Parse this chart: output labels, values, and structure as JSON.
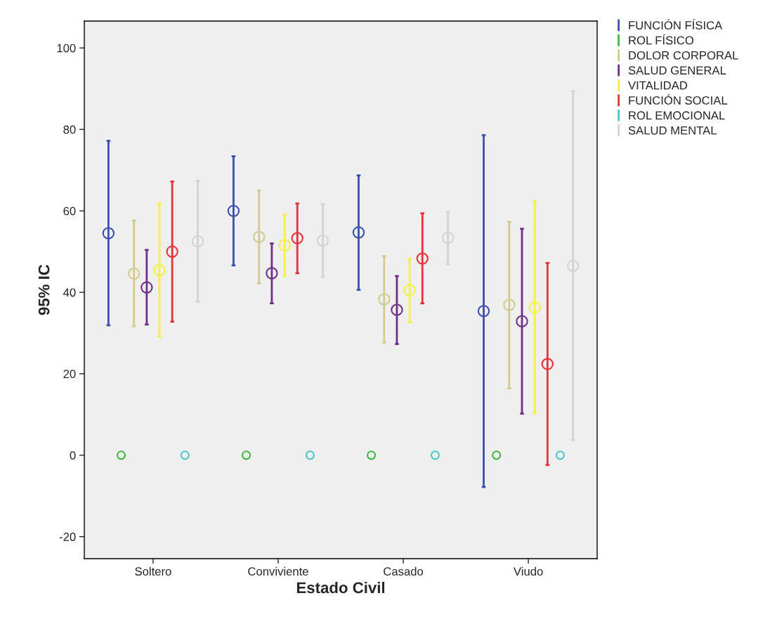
{
  "chart_data": {
    "type": "scatter",
    "xlabel": "Estado Civil",
    "ylabel": "95% IC",
    "categories": [
      "Soltero",
      "Conviviente",
      "Casado",
      "Viudo"
    ],
    "ylim": [
      -25.4,
      106.6
    ],
    "yticks": [
      -20,
      0,
      20,
      40,
      60,
      80,
      100
    ],
    "marker": "circle",
    "grid": false,
    "legend": "top right",
    "series": [
      {
        "name": "FUNCIÓN FÍSICA",
        "color": "#3a4fb0",
        "values": [
          54.5,
          60.0,
          54.7,
          35.4
        ],
        "errors": [
          [
            31.9,
            77.2
          ],
          [
            46.6,
            73.4
          ],
          [
            40.6,
            68.7
          ],
          [
            -7.8,
            78.6
          ]
        ]
      },
      {
        "name": "ROL FÍSICO",
        "color": "#3cb83c",
        "values": [
          0,
          0,
          0,
          0
        ]
      },
      {
        "name": "DOLOR CORPORAL",
        "color": "#d1cc8e",
        "values": [
          44.6,
          53.6,
          38.3,
          36.9
        ],
        "errors": [
          [
            31.7,
            57.6
          ],
          [
            42.2,
            65.0
          ],
          [
            27.7,
            48.9
          ],
          [
            16.4,
            57.3
          ]
        ]
      },
      {
        "name": "SALUD GENERAL",
        "color": "#6e2f8a",
        "values": [
          41.2,
          44.7,
          35.7,
          32.9
        ],
        "errors": [
          [
            32.1,
            50.4
          ],
          [
            37.3,
            52.0
          ],
          [
            27.3,
            44.0
          ],
          [
            10.2,
            55.6
          ]
        ]
      },
      {
        "name": "VITALIDAD",
        "color": "#f5f042",
        "values": [
          45.4,
          51.6,
          40.5,
          36.3
        ],
        "errors": [
          [
            29.1,
            61.8
          ],
          [
            44.0,
            59.1
          ],
          [
            32.7,
            48.2
          ],
          [
            10.4,
            62.3
          ]
        ]
      },
      {
        "name": "FUNCIÓN SOCIAL",
        "color": "#e8303a",
        "values": [
          50.0,
          53.3,
          48.3,
          22.4
        ],
        "errors": [
          [
            32.8,
            67.2
          ],
          [
            44.7,
            61.8
          ],
          [
            37.3,
            59.4
          ],
          [
            -2.4,
            47.2
          ]
        ]
      },
      {
        "name": "ROL EMOCIONAL",
        "color": "#4cc7c7",
        "values": [
          0,
          0,
          0,
          0
        ]
      },
      {
        "name": "SALUD MENTAL",
        "color": "#d3d3d3",
        "values": [
          52.5,
          52.7,
          53.4,
          46.5
        ],
        "errors": [
          [
            37.7,
            67.4
          ],
          [
            43.8,
            61.6
          ],
          [
            46.9,
            59.8
          ],
          [
            3.7,
            89.4
          ]
        ]
      }
    ]
  }
}
